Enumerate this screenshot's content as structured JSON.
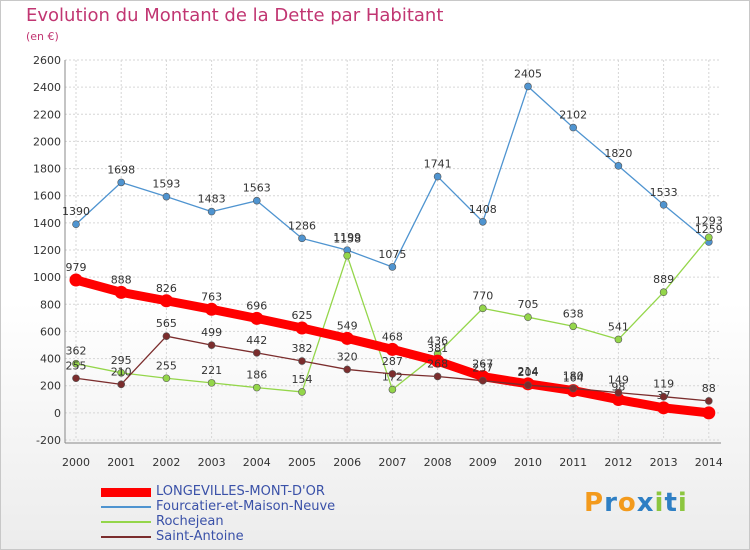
{
  "title": "Evolution du Montant de la Dette par Habitant",
  "subtitle": "(en €)",
  "brand": {
    "letters": [
      "P",
      "r",
      "o",
      "x",
      "i",
      "t",
      "i"
    ],
    "colors": [
      "#f39a1c",
      "#2e7fc4",
      "#f39a1c",
      "#2e7fc4",
      "#8cc63f",
      "#2e7fc4",
      "#8cc63f"
    ]
  },
  "colors": {
    "title": "#c13672",
    "axis_text": "#333333",
    "legend_text": "#3a51a8",
    "grid": "#d6d6d6"
  },
  "chart_data": {
    "type": "line",
    "title": "Evolution du Montant de la Dette par Habitant",
    "subtitle": "(en €)",
    "xlabel": "",
    "ylabel": "",
    "x": [
      "2000",
      "2001",
      "2002",
      "2003",
      "2004",
      "2005",
      "2006",
      "2007",
      "2008",
      "2009",
      "2010",
      "2011",
      "2012",
      "2013",
      "2014"
    ],
    "ylim": [
      -200,
      2600
    ],
    "yticks": [
      "-200",
      "0",
      "200",
      "400",
      "600",
      "800",
      "1000",
      "1200",
      "1400",
      "1600",
      "1800",
      "2000",
      "2200",
      "2400",
      "2600"
    ],
    "grid": true,
    "legend_position": "bottom-left",
    "series": [
      {
        "name": "LONGEVILLES-MONT-D'OR",
        "color": "#ff0000",
        "values": [
          979,
          888,
          826,
          763,
          696,
          625,
          549,
          468,
          381,
          267,
          214,
          164,
          98,
          37,
          0
        ],
        "labels": [
          "979",
          "888",
          "826",
          "763",
          "696",
          "625",
          "549",
          "468",
          "381",
          "267",
          "214",
          "164",
          "98",
          "37",
          ""
        ]
      },
      {
        "name": "Fourcatier-et-Maison-Neuve",
        "color": "#4f94d0",
        "values": [
          1390,
          1698,
          1593,
          1483,
          1563,
          1286,
          1199,
          1075,
          1741,
          1408,
          2405,
          2102,
          1820,
          1533,
          1259
        ],
        "labels": [
          "1390",
          "1698",
          "1593",
          "1483",
          "1563",
          "1286",
          "1199",
          "1075",
          "1741",
          "1408",
          "2405",
          "2102",
          "1820",
          "1533",
          "1259"
        ]
      },
      {
        "name": "Rochejean",
        "color": "#94d64a",
        "values": [
          362,
          295,
          255,
          221,
          186,
          154,
          1158,
          172,
          436,
          770,
          705,
          638,
          541,
          889,
          1293
        ],
        "labels": [
          "362",
          "295",
          "255",
          "221",
          "186",
          "154",
          "1158",
          "172",
          "436",
          "770",
          "705",
          "638",
          "541",
          "889",
          "1293"
        ]
      },
      {
        "name": "Saint-Antoine",
        "color": "#7b2d2d",
        "values": [
          255,
          210,
          565,
          499,
          442,
          382,
          320,
          287,
          268,
          237,
          204,
          180,
          149,
          119,
          88
        ],
        "labels": [
          "255",
          "210",
          "565",
          "499",
          "442",
          "382",
          "320",
          "287",
          "268",
          "237",
          "204",
          "180",
          "149",
          "119",
          "88"
        ]
      }
    ]
  }
}
